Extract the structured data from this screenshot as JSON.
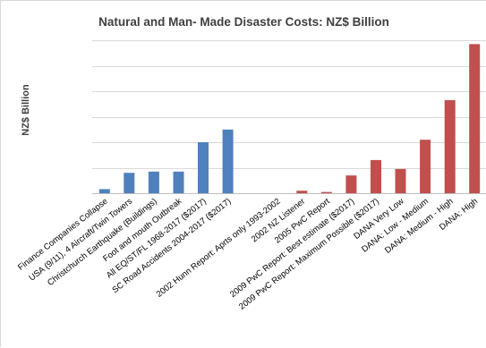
{
  "chart_data": {
    "type": "bar",
    "title": "Natural and Man- Made Disaster Costs: NZ$ Billion",
    "xlabel": "",
    "ylabel": "NZ$ Billion",
    "grid": true,
    "legend": "none",
    "ylim": [
      0,
      60
    ],
    "categories": [
      "Finance Companies Collapse",
      "USA (9/11), 4 Aircraft/Twin Towers",
      "Christchurch Earthquake (Buildings)",
      "Foot and mouth Outbreak",
      "All EQ/ST/FL 1968-2017 ($2017)",
      "SC Road Accidents 2004-2017 ($2017)",
      "",
      "2002 Hunn Report: Aprts only 1993-2002",
      "2002 NZ Listener",
      "2005 PwC Report",
      "2009 PwC Report: Best estimate ($2017)",
      "2009 PwC Report: Maximum Possible ($2017)",
      "DANA Very Low",
      "DANA: Low - Medium",
      "DANA: Medium - High",
      "DANA: High"
    ],
    "values": [
      1.6,
      8,
      8.5,
      8.5,
      20,
      25,
      0,
      0,
      1,
      0.5,
      7,
      13,
      9.5,
      21,
      36.5,
      58.5
    ],
    "colors": [
      "#4f81bd",
      "#4f81bd",
      "#4f81bd",
      "#4f81bd",
      "#4f81bd",
      "#4f81bd",
      "#4f81bd",
      "#c0504d",
      "#c0504d",
      "#c0504d",
      "#c0504d",
      "#c0504d",
      "#c0504d",
      "#c0504d",
      "#c0504d",
      "#c0504d"
    ]
  }
}
